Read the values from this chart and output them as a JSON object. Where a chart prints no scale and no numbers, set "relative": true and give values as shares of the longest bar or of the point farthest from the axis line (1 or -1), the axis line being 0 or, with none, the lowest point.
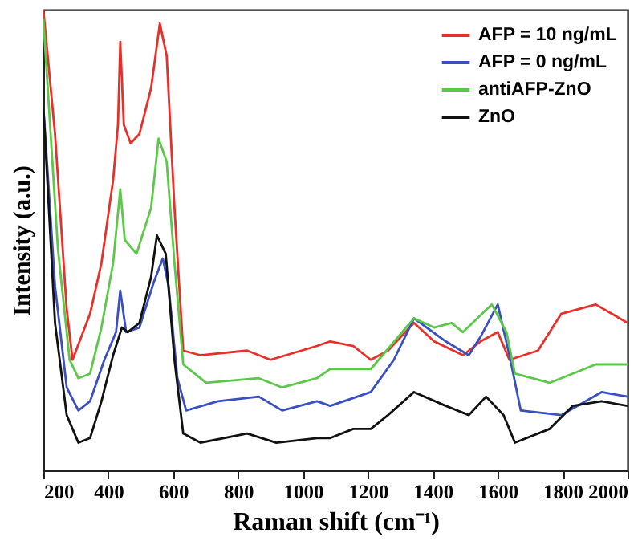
{
  "chart_data": {
    "type": "line",
    "relative": true,
    "xlabel": "Raman shift (cm⁻¹)",
    "ylabel": "Intensity (a.u.)",
    "xlim": [
      200,
      2000
    ],
    "xticks": [
      200,
      400,
      600,
      800,
      1000,
      1200,
      1400,
      1600,
      1800,
      2000
    ],
    "legend": "top right",
    "grid": false,
    "series": [
      {
        "name": "AFP = 10 ng/mL",
        "color": "#e8302a",
        "x": [
          200,
          236,
          272,
          290,
          317,
          344,
          379,
          415,
          430,
          437,
          448,
          469,
          496,
          532,
          559,
          580,
          604,
          631,
          684,
          828,
          900,
          1043,
          1084,
          1155,
          1209,
          1262,
          1342,
          1404,
          1493,
          1547,
          1600,
          1636,
          1724,
          1796,
          1902,
          2000
        ],
        "values": [
          1.0,
          0.73,
          0.35,
          0.24,
          0.29,
          0.34,
          0.45,
          0.63,
          0.75,
          0.93,
          0.75,
          0.71,
          0.73,
          0.83,
          0.97,
          0.9,
          0.57,
          0.26,
          0.25,
          0.26,
          0.24,
          0.27,
          0.28,
          0.27,
          0.24,
          0.26,
          0.32,
          0.28,
          0.25,
          0.28,
          0.3,
          0.24,
          0.26,
          0.34,
          0.36,
          0.32
        ]
      },
      {
        "name": "AFP = 0 ng/mL",
        "color": "#3a4fc0",
        "x": [
          200,
          236,
          272,
          308,
          344,
          388,
          424,
          437,
          455,
          496,
          541,
          568,
          586,
          613,
          640,
          738,
          864,
          936,
          1043,
          1084,
          1209,
          1280,
          1342,
          1440,
          1511,
          1547,
          1600,
          1636,
          1671,
          1796,
          1920,
          2000
        ],
        "values": [
          0.79,
          0.4,
          0.18,
          0.13,
          0.15,
          0.24,
          0.3,
          0.39,
          0.3,
          0.31,
          0.41,
          0.46,
          0.4,
          0.2,
          0.13,
          0.15,
          0.16,
          0.13,
          0.15,
          0.14,
          0.17,
          0.24,
          0.33,
          0.28,
          0.25,
          0.29,
          0.36,
          0.25,
          0.13,
          0.12,
          0.17,
          0.16
        ]
      },
      {
        "name": "antiAFP-ZnO",
        "color": "#5cc84a",
        "x": [
          200,
          245,
          281,
          308,
          344,
          379,
          415,
          437,
          451,
          487,
          532,
          555,
          580,
          604,
          631,
          702,
          864,
          936,
          1043,
          1084,
          1209,
          1342,
          1404,
          1458,
          1493,
          1582,
          1627,
          1653,
          1760,
          1902,
          2000
        ],
        "values": [
          0.98,
          0.48,
          0.24,
          0.2,
          0.21,
          0.31,
          0.45,
          0.61,
          0.5,
          0.47,
          0.57,
          0.72,
          0.67,
          0.45,
          0.23,
          0.19,
          0.2,
          0.18,
          0.2,
          0.22,
          0.22,
          0.33,
          0.31,
          0.32,
          0.3,
          0.36,
          0.3,
          0.21,
          0.19,
          0.23,
          0.23
        ]
      },
      {
        "name": "ZnO",
        "color": "#111111",
        "x": [
          200,
          236,
          272,
          308,
          344,
          379,
          415,
          442,
          460,
          496,
          532,
          550,
          577,
          604,
          631,
          684,
          828,
          918,
          1043,
          1084,
          1155,
          1209,
          1262,
          1342,
          1440,
          1511,
          1564,
          1618,
          1653,
          1760,
          1831,
          1920,
          2000
        ],
        "values": [
          0.79,
          0.32,
          0.12,
          0.06,
          0.07,
          0.15,
          0.25,
          0.31,
          0.3,
          0.32,
          0.42,
          0.51,
          0.47,
          0.24,
          0.08,
          0.06,
          0.08,
          0.06,
          0.07,
          0.07,
          0.09,
          0.09,
          0.12,
          0.17,
          0.14,
          0.12,
          0.16,
          0.12,
          0.06,
          0.09,
          0.14,
          0.15,
          0.14
        ]
      }
    ]
  }
}
